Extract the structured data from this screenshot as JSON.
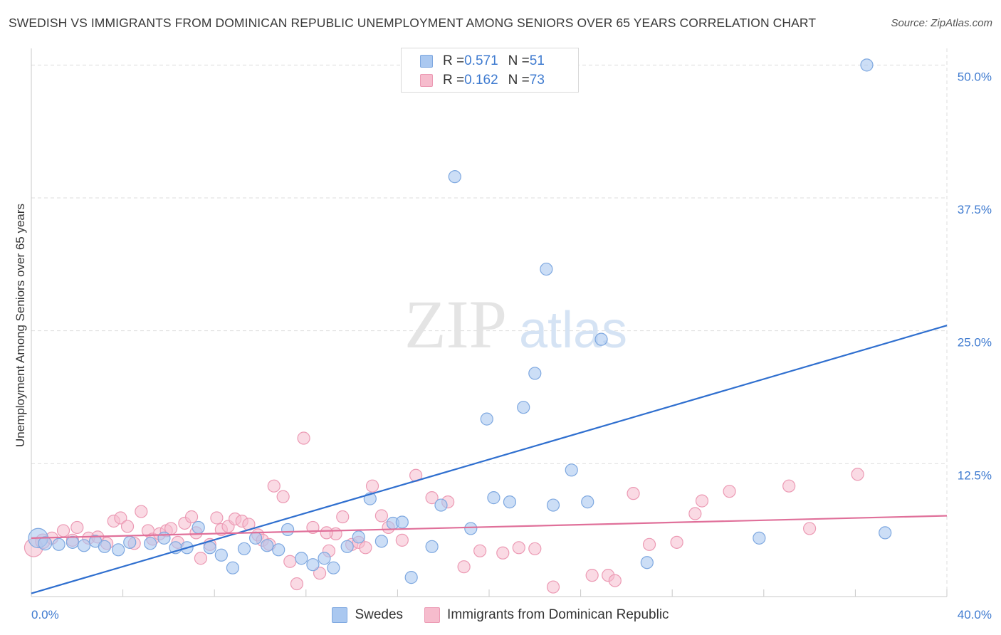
{
  "title": "SWEDISH VS IMMIGRANTS FROM DOMINICAN REPUBLIC UNEMPLOYMENT AMONG SENIORS OVER 65 YEARS CORRELATION CHART",
  "source": "Source: ZipAtlas.com",
  "watermark": {
    "zip": "ZIP",
    "atlas": "atlas"
  },
  "legend": {
    "rows": [
      {
        "r_label": "R = ",
        "r_value": "0.571",
        "n_label": "N = ",
        "n_value": "51"
      },
      {
        "r_label": "R = ",
        "r_value": "0.162",
        "n_label": "N = ",
        "n_value": "73"
      }
    ]
  },
  "bottom_legend": [
    "Swedes",
    "Immigrants from Dominican Republic"
  ],
  "colors": {
    "blue_fill": "#aac8f0",
    "blue_stroke": "#7ea8e0",
    "blue_line": "#2f6fcf",
    "pink_fill": "#f6bccd",
    "pink_stroke": "#ec9ab4",
    "pink_line": "#e0709a",
    "tick_label": "#3f7bd0",
    "grid": "#dddddd"
  },
  "chart_data": {
    "type": "scatter",
    "title": "SWEDISH VS IMMIGRANTS FROM DOMINICAN REPUBLIC UNEMPLOYMENT AMONG SENIORS OVER 65 YEARS CORRELATION CHART",
    "xlabel": "",
    "ylabel": "Unemployment Among Seniors over 65 years",
    "xlim": [
      0,
      40
    ],
    "ylim": [
      0,
      50
    ],
    "x_tick_labels": [
      "0.0%",
      "40.0%"
    ],
    "y_ticks": [
      12.5,
      25.0,
      37.5,
      50.0
    ],
    "y_tick_labels": [
      "12.5%",
      "25.0%",
      "37.5%",
      "50.0%"
    ],
    "series": [
      {
        "name": "Swedes",
        "r": 0.571,
        "n": 51,
        "trend": {
          "x": [
            0,
            40
          ],
          "y": [
            0.3,
            25.5
          ]
        },
        "points": [
          [
            0.3,
            5.5,
            1.6
          ],
          [
            0.6,
            5.0,
            1.1
          ],
          [
            1.2,
            4.9,
            1
          ],
          [
            1.8,
            5.1,
            1
          ],
          [
            2.3,
            4.8,
            1
          ],
          [
            2.8,
            5.2,
            1
          ],
          [
            3.2,
            4.7,
            1
          ],
          [
            3.8,
            4.4,
            1
          ],
          [
            4.3,
            5.1,
            1
          ],
          [
            5.2,
            5.0,
            1
          ],
          [
            5.8,
            5.5,
            1
          ],
          [
            6.3,
            4.6,
            1
          ],
          [
            6.8,
            4.6,
            1
          ],
          [
            7.3,
            6.5,
            1
          ],
          [
            7.8,
            4.6,
            1
          ],
          [
            8.3,
            3.9,
            1
          ],
          [
            8.8,
            2.7,
            1
          ],
          [
            9.3,
            4.5,
            1
          ],
          [
            9.8,
            5.5,
            1
          ],
          [
            10.3,
            4.8,
            1
          ],
          [
            10.8,
            4.4,
            1
          ],
          [
            11.2,
            6.3,
            1
          ],
          [
            11.8,
            3.6,
            1
          ],
          [
            12.3,
            3.0,
            1
          ],
          [
            12.8,
            3.6,
            1
          ],
          [
            13.2,
            2.7,
            1
          ],
          [
            13.8,
            4.7,
            1
          ],
          [
            14.3,
            5.6,
            1
          ],
          [
            14.8,
            9.2,
            1
          ],
          [
            15.3,
            5.2,
            1
          ],
          [
            15.8,
            6.9,
            1
          ],
          [
            16.2,
            7.0,
            1
          ],
          [
            16.6,
            1.8,
            1
          ],
          [
            17.5,
            4.7,
            1
          ],
          [
            17.9,
            8.6,
            1
          ],
          [
            18.5,
            39.5,
            1
          ],
          [
            19.2,
            6.4,
            1
          ],
          [
            19.9,
            16.7,
            1
          ],
          [
            20.2,
            9.3,
            1
          ],
          [
            20.9,
            8.9,
            1
          ],
          [
            21.5,
            17.8,
            1
          ],
          [
            22.0,
            21.0,
            1
          ],
          [
            22.5,
            30.8,
            1
          ],
          [
            22.8,
            8.6,
            1
          ],
          [
            23.6,
            11.9,
            1
          ],
          [
            24.3,
            8.9,
            1
          ],
          [
            24.9,
            24.2,
            1
          ],
          [
            26.9,
            3.2,
            1
          ],
          [
            31.8,
            5.5,
            1
          ],
          [
            36.5,
            50.0,
            1
          ],
          [
            37.3,
            6.0,
            1
          ]
        ]
      },
      {
        "name": "Immigrants from Dominican Republic",
        "r": 0.162,
        "n": 73,
        "trend": {
          "x": [
            0,
            40
          ],
          "y": [
            5.5,
            7.6
          ]
        },
        "points": [
          [
            0.1,
            4.6,
            1.5
          ],
          [
            0.5,
            5.2,
            1.2
          ],
          [
            0.9,
            5.5,
            1
          ],
          [
            1.4,
            6.2,
            1
          ],
          [
            1.8,
            5.3,
            1
          ],
          [
            2.0,
            6.5,
            1
          ],
          [
            2.5,
            5.5,
            1
          ],
          [
            2.9,
            5.6,
            1
          ],
          [
            3.3,
            5.0,
            1
          ],
          [
            3.6,
            7.1,
            1
          ],
          [
            3.9,
            7.4,
            1
          ],
          [
            4.2,
            6.6,
            1
          ],
          [
            4.5,
            5.0,
            1
          ],
          [
            4.8,
            8.0,
            1
          ],
          [
            5.1,
            6.2,
            1
          ],
          [
            5.3,
            5.4,
            1
          ],
          [
            5.6,
            5.9,
            1
          ],
          [
            5.9,
            6.2,
            1
          ],
          [
            6.1,
            6.4,
            1
          ],
          [
            6.4,
            5.1,
            1
          ],
          [
            6.7,
            6.9,
            1
          ],
          [
            7.0,
            7.5,
            1
          ],
          [
            7.2,
            6.0,
            1
          ],
          [
            7.4,
            3.6,
            1
          ],
          [
            7.8,
            4.9,
            1
          ],
          [
            8.1,
            7.4,
            1
          ],
          [
            8.3,
            6.3,
            1
          ],
          [
            8.6,
            6.6,
            1
          ],
          [
            8.9,
            7.3,
            1
          ],
          [
            9.2,
            7.1,
            1
          ],
          [
            9.5,
            6.8,
            1
          ],
          [
            9.9,
            5.8,
            1
          ],
          [
            10.1,
            5.3,
            1
          ],
          [
            10.4,
            4.9,
            1
          ],
          [
            10.6,
            10.4,
            1
          ],
          [
            11.0,
            9.4,
            1
          ],
          [
            11.3,
            3.3,
            1
          ],
          [
            11.6,
            1.2,
            1
          ],
          [
            11.9,
            14.9,
            1
          ],
          [
            12.3,
            6.5,
            1
          ],
          [
            12.6,
            2.2,
            1
          ],
          [
            13.0,
            4.3,
            1
          ],
          [
            13.3,
            5.9,
            1
          ],
          [
            13.6,
            7.5,
            1
          ],
          [
            14.0,
            4.9,
            1
          ],
          [
            14.3,
            5.1,
            1
          ],
          [
            14.6,
            4.6,
            1
          ],
          [
            14.9,
            10.4,
            1
          ],
          [
            15.3,
            7.6,
            1
          ],
          [
            15.6,
            6.5,
            1
          ],
          [
            16.2,
            5.3,
            1
          ],
          [
            16.8,
            11.4,
            1
          ],
          [
            17.5,
            9.3,
            1
          ],
          [
            18.2,
            8.9,
            1
          ],
          [
            18.9,
            2.8,
            1
          ],
          [
            19.6,
            4.3,
            1
          ],
          [
            20.6,
            4.1,
            1
          ],
          [
            21.3,
            4.6,
            1
          ],
          [
            22.0,
            4.5,
            1
          ],
          [
            24.5,
            2.0,
            1
          ],
          [
            25.2,
            2.0,
            1
          ],
          [
            25.5,
            1.5,
            1
          ],
          [
            26.3,
            9.7,
            1
          ],
          [
            27.0,
            4.9,
            1
          ],
          [
            28.2,
            5.1,
            1
          ],
          [
            29.0,
            7.8,
            1
          ],
          [
            29.3,
            9.0,
            1
          ],
          [
            30.5,
            9.9,
            1
          ],
          [
            33.1,
            10.4,
            1
          ],
          [
            34.0,
            6.4,
            1
          ],
          [
            36.1,
            11.5,
            1
          ],
          [
            22.8,
            0.9,
            1
          ],
          [
            12.9,
            6.0,
            1
          ]
        ]
      }
    ]
  }
}
